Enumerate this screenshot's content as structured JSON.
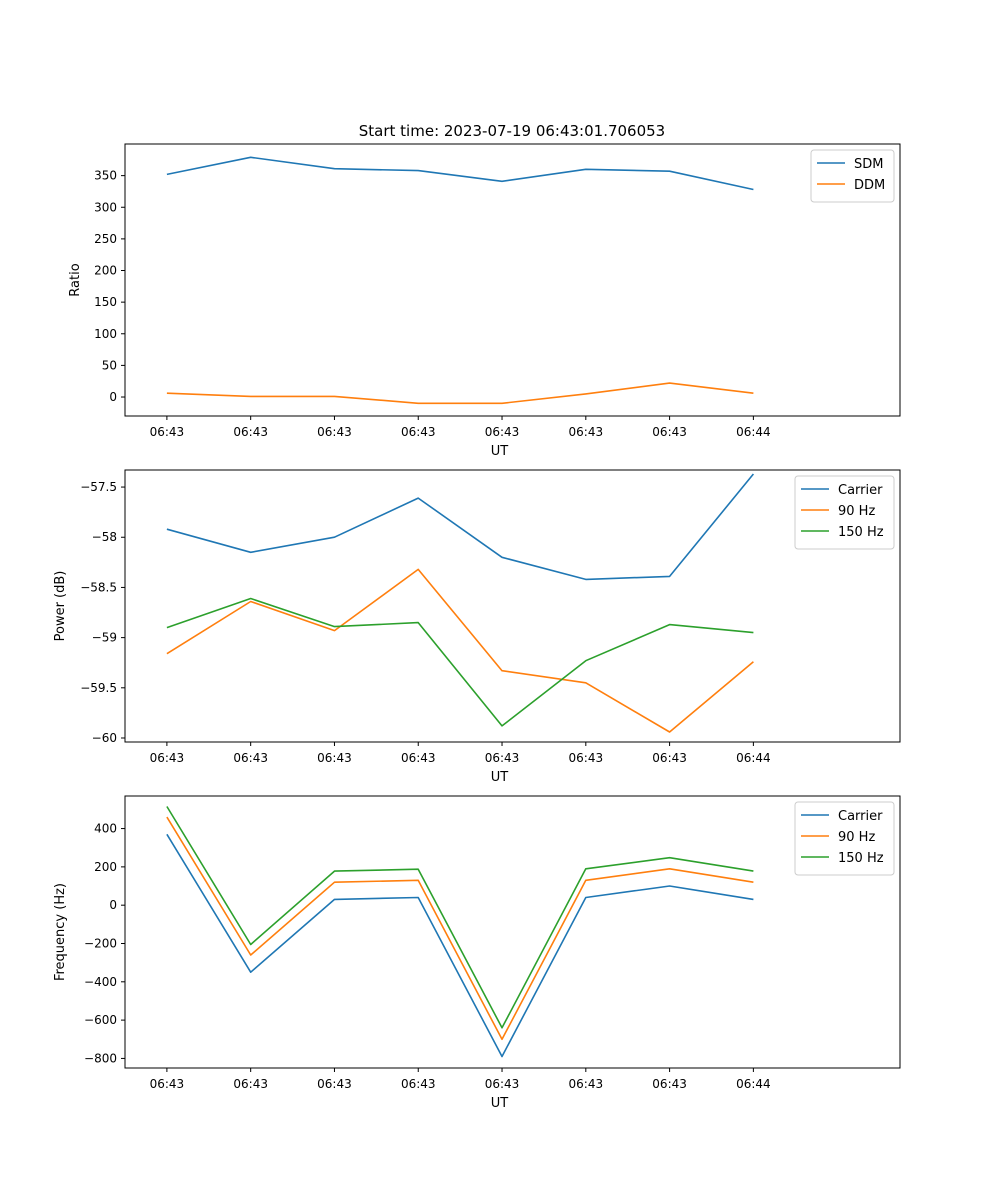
{
  "title": "Start time: 2023-07-19 06:43:01.706053",
  "colors": {
    "c1": "#1f77b4",
    "c2": "#ff7f0e",
    "c3": "#2ca02c",
    "axis": "#000000"
  },
  "chart_data": [
    {
      "type": "line",
      "xlabel": "UT",
      "ylabel": "Ratio",
      "x_tick_labels": [
        "06:43",
        "06:43",
        "06:43",
        "06:43",
        "06:43",
        "06:43",
        "06:43",
        "06:44"
      ],
      "xlim": [
        -0.5,
        8.75
      ],
      "x": [
        0,
        1,
        2,
        3,
        4,
        5,
        6,
        7
      ],
      "ylim": [
        -30,
        400
      ],
      "yticks": [
        0,
        50,
        100,
        150,
        200,
        250,
        300,
        350
      ],
      "legend_position": "upper right",
      "series": [
        {
          "name": "SDM",
          "color": "#1f77b4",
          "values": [
            352,
            379,
            361,
            358,
            341,
            360,
            357,
            328
          ]
        },
        {
          "name": "DDM",
          "color": "#ff7f0e",
          "values": [
            6,
            1,
            1,
            -10,
            -10,
            5,
            22,
            6
          ]
        }
      ]
    },
    {
      "type": "line",
      "xlabel": "UT",
      "ylabel": "Power (dB)",
      "x_tick_labels": [
        "06:43",
        "06:43",
        "06:43",
        "06:43",
        "06:43",
        "06:43",
        "06:43",
        "06:44"
      ],
      "xlim": [
        -0.5,
        8.75
      ],
      "x": [
        0,
        1,
        2,
        3,
        4,
        5,
        6,
        7
      ],
      "ylim": [
        -60.04,
        -57.33
      ],
      "yticks": [
        -60.0,
        -59.5,
        -59.0,
        -58.5,
        -58.0,
        -57.5
      ],
      "legend_position": "upper right",
      "series": [
        {
          "name": "Carrier",
          "color": "#1f77b4",
          "values": [
            -57.92,
            -58.15,
            -58.0,
            -57.61,
            -58.2,
            -58.42,
            -58.39,
            -57.37
          ]
        },
        {
          "name": "90 Hz",
          "color": "#ff7f0e",
          "values": [
            -59.16,
            -58.64,
            -58.93,
            -58.32,
            -59.33,
            -59.45,
            -59.94,
            -59.24
          ]
        },
        {
          "name": "150 Hz",
          "color": "#2ca02c",
          "values": [
            -58.9,
            -58.61,
            -58.89,
            -58.85,
            -59.88,
            -59.23,
            -58.87,
            -58.95
          ]
        }
      ]
    },
    {
      "type": "line",
      "xlabel": "UT",
      "ylabel": "Frequency (Hz)",
      "x_tick_labels": [
        "06:43",
        "06:43",
        "06:43",
        "06:43",
        "06:43",
        "06:43",
        "06:43",
        "06:44"
      ],
      "xlim": [
        -0.5,
        8.75
      ],
      "x": [
        0,
        1,
        2,
        3,
        4,
        5,
        6,
        7
      ],
      "ylim": [
        -850,
        570
      ],
      "yticks": [
        -800,
        -600,
        -400,
        -200,
        0,
        200,
        400
      ],
      "legend_position": "upper right",
      "series": [
        {
          "name": "Carrier",
          "color": "#1f77b4",
          "values": [
            370,
            -350,
            30,
            40,
            -790,
            40,
            100,
            30
          ]
        },
        {
          "name": "90 Hz",
          "color": "#ff7f0e",
          "values": [
            460,
            -260,
            120,
            130,
            -700,
            130,
            190,
            120
          ]
        },
        {
          "name": "150 Hz",
          "color": "#2ca02c",
          "values": [
            515,
            -205,
            178,
            188,
            -640,
            190,
            248,
            178
          ]
        }
      ]
    }
  ]
}
